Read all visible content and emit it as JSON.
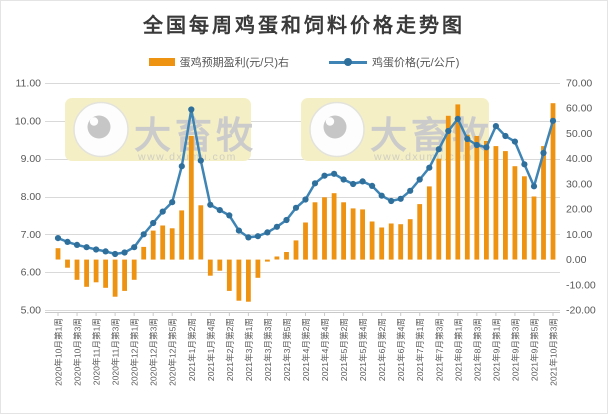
{
  "title": "全国每周鸡蛋和饲料价格走势图",
  "legend": [
    {
      "label": "蛋鸡预期盈利(元/只)右",
      "type": "bar",
      "color": "#EE9211"
    },
    {
      "label": "鸡蛋价格(元/公斤)",
      "type": "line",
      "color": "#3E84B4",
      "marker_color": "#2E6F9C"
    }
  ],
  "watermark": {
    "brand": "大畜牧",
    "url": "www.dxumu.com"
  },
  "chart_data": {
    "type": "combo",
    "n_points": 53,
    "x_tick_every": 2,
    "x_tick_labels": [
      "2020年10月第1周",
      "2020年10月第3周",
      "2020年11月第1周",
      "2020年11月第3周",
      "2020年12月第1周",
      "2020年12月第3周",
      "2020年12月第5周",
      "2021年1月第2周",
      "2021年1月第4周",
      "2021年2月第2周",
      "2021年3月第1周",
      "2021年3月第3周",
      "2021年3月第5周",
      "2021年4月第2周",
      "2021年4月第4周",
      "2021年5月第2周",
      "2021年5月第4周",
      "2021年6月第2周",
      "2021年6月第4周",
      "2021年7月第1周",
      "2021年7月第3周",
      "2021年8月第1周",
      "2021年8月第3周",
      "2021年9月第1周",
      "2021年9月第3周",
      "2021年9月第5周",
      "2021年10月第3周"
    ],
    "series": [
      {
        "name": "蛋鸡预期盈利(元/只)右",
        "type": "bar",
        "axis": "right",
        "color": "#EE9211",
        "values": [
          4.5,
          -3.2,
          -8,
          -10.8,
          -9,
          -11.2,
          -14.7,
          -12.4,
          -8,
          5,
          11.5,
          13.5,
          12.4,
          19.5,
          49,
          21.5,
          -6.4,
          -4.4,
          -12.4,
          -16.3,
          -16.7,
          -7.2,
          -0.8,
          1.2,
          3,
          7.6,
          14.7,
          22.7,
          24.7,
          26.3,
          22.7,
          20.3,
          19.9,
          15.1,
          12.7,
          14.3,
          14,
          16,
          22,
          29,
          40,
          57,
          61.5,
          49.5,
          49,
          47,
          45,
          43,
          37,
          33,
          25,
          45,
          62
        ]
      },
      {
        "name": "鸡蛋价格(元/公斤)",
        "type": "line",
        "axis": "left",
        "color": "#3E84B4",
        "marker_color": "#2E6F9C",
        "values": [
          6.9,
          6.8,
          6.72,
          6.66,
          6.6,
          6.55,
          6.48,
          6.52,
          6.66,
          7.0,
          7.3,
          7.6,
          7.85,
          8.8,
          10.3,
          8.95,
          7.78,
          7.64,
          7.5,
          7.1,
          6.92,
          6.95,
          7.05,
          7.2,
          7.38,
          7.7,
          7.92,
          8.35,
          8.55,
          8.6,
          8.45,
          8.33,
          8.4,
          8.28,
          8.02,
          7.88,
          7.94,
          8.15,
          8.45,
          8.76,
          9.25,
          9.73,
          10.05,
          9.52,
          9.36,
          9.3,
          9.86,
          9.6,
          9.45,
          8.85,
          8.27,
          9.15,
          10.0
        ]
      }
    ],
    "left_axis": {
      "min": 5,
      "max": 11,
      "tick_labels": [
        "11.00",
        "10.00",
        "9.00",
        "8.00",
        "7.00",
        "6.00",
        "5.00"
      ]
    },
    "right_axis": {
      "min": -20,
      "max": 70,
      "tick_labels": [
        "70.00",
        "60.00",
        "50.00",
        "40.00",
        "30.00",
        "20.00",
        "10.00",
        "0.00",
        "-10.00",
        "-20.00"
      ]
    },
    "grid": true,
    "legend_position": "top"
  }
}
